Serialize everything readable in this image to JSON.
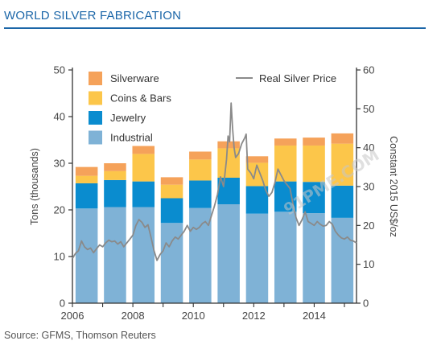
{
  "header": {
    "title": "WORLD SILVER FABRICATION"
  },
  "footer": {
    "source": "Source: GFMS, Thomson Reuters"
  },
  "watermark": "91PME.COM",
  "colors": {
    "industrial": "#7fb2d6",
    "jewelry": "#0a8ccf",
    "coins": "#fcc64a",
    "silverware": "#f5a25a",
    "price": "#8a8a8a",
    "title": "#1b66a8",
    "axis": "#333333"
  },
  "chart_data": {
    "type": "bar",
    "stacked": true,
    "title": "WORLD SILVER FABRICATION",
    "ylabel": "Tons (thousands)",
    "y2label": "Constant 2015 US$/oz",
    "ylim": [
      0,
      50
    ],
    "y2lim": [
      0,
      60
    ],
    "yticks": [
      "0",
      "10",
      "20",
      "30",
      "40",
      "50"
    ],
    "y2ticks": [
      "0",
      "10",
      "20",
      "30",
      "40",
      "50",
      "60"
    ],
    "xticks": [
      "2006",
      "2008",
      "2010",
      "2012",
      "2014"
    ],
    "xlim": [
      2006,
      2015.4
    ],
    "categories": [
      "2006",
      "2007",
      "2008",
      "2009",
      "2010",
      "2011",
      "2012",
      "2013",
      "2014",
      "2015"
    ],
    "series": [
      {
        "name": "Industrial",
        "values": [
          20.3,
          20.6,
          20.6,
          17.2,
          20.4,
          21.2,
          19.2,
          19.6,
          19.3,
          18.3
        ]
      },
      {
        "name": "Jewelry",
        "values": [
          5.4,
          5.8,
          5.5,
          5.3,
          5.9,
          5.7,
          5.9,
          6.5,
          6.7,
          6.9
        ]
      },
      {
        "name": "Coins & Bars",
        "values": [
          1.6,
          1.9,
          5.9,
          2.9,
          4.5,
          6.3,
          5.0,
          7.7,
          7.8,
          9.0
        ]
      },
      {
        "name": "Silverware",
        "values": [
          1.9,
          1.7,
          1.7,
          1.6,
          1.7,
          1.5,
          1.4,
          1.5,
          1.7,
          2.2
        ]
      }
    ],
    "line_series": {
      "name": "Real Silver Price",
      "axis": "right",
      "points": [
        [
          2006.0,
          11.5
        ],
        [
          2006.1,
          12.8
        ],
        [
          2006.2,
          13.5
        ],
        [
          2006.3,
          16.0
        ],
        [
          2006.4,
          14.5
        ],
        [
          2006.5,
          13.8
        ],
        [
          2006.6,
          14.2
        ],
        [
          2006.7,
          13.0
        ],
        [
          2006.8,
          14.0
        ],
        [
          2006.9,
          15.0
        ],
        [
          2007.0,
          14.5
        ],
        [
          2007.1,
          15.5
        ],
        [
          2007.2,
          16.2
        ],
        [
          2007.3,
          15.8
        ],
        [
          2007.4,
          16.0
        ],
        [
          2007.5,
          15.2
        ],
        [
          2007.6,
          15.8
        ],
        [
          2007.7,
          14.5
        ],
        [
          2007.8,
          15.5
        ],
        [
          2007.9,
          16.5
        ],
        [
          2008.0,
          17.5
        ],
        [
          2008.1,
          20.0
        ],
        [
          2008.2,
          21.5
        ],
        [
          2008.3,
          20.8
        ],
        [
          2008.4,
          19.5
        ],
        [
          2008.5,
          20.2
        ],
        [
          2008.6,
          17.0
        ],
        [
          2008.7,
          13.5
        ],
        [
          2008.8,
          11.0
        ],
        [
          2008.9,
          12.5
        ],
        [
          2009.0,
          13.5
        ],
        [
          2009.1,
          15.5
        ],
        [
          2009.2,
          14.5
        ],
        [
          2009.3,
          16.0
        ],
        [
          2009.4,
          17.0
        ],
        [
          2009.5,
          16.5
        ],
        [
          2009.6,
          17.5
        ],
        [
          2009.7,
          18.5
        ],
        [
          2009.8,
          20.0
        ],
        [
          2009.9,
          18.5
        ],
        [
          2010.0,
          19.5
        ],
        [
          2010.1,
          19.0
        ],
        [
          2010.2,
          19.5
        ],
        [
          2010.3,
          20.5
        ],
        [
          2010.4,
          21.0
        ],
        [
          2010.5,
          20.0
        ],
        [
          2010.6,
          22.5
        ],
        [
          2010.7,
          25.0
        ],
        [
          2010.8,
          28.0
        ],
        [
          2010.9,
          32.5
        ],
        [
          2011.0,
          30.0
        ],
        [
          2011.1,
          37.0
        ],
        [
          2011.15,
          43.0
        ],
        [
          2011.2,
          41.5
        ],
        [
          2011.25,
          51.5
        ],
        [
          2011.3,
          45.0
        ],
        [
          2011.35,
          40.0
        ],
        [
          2011.4,
          37.5
        ],
        [
          2011.5,
          38.5
        ],
        [
          2011.6,
          41.0
        ],
        [
          2011.7,
          42.5
        ],
        [
          2011.75,
          43.5
        ],
        [
          2011.8,
          34.5
        ],
        [
          2011.9,
          33.5
        ],
        [
          2012.0,
          32.0
        ],
        [
          2012.1,
          35.5
        ],
        [
          2012.2,
          33.5
        ],
        [
          2012.3,
          31.5
        ],
        [
          2012.4,
          29.0
        ],
        [
          2012.5,
          27.5
        ],
        [
          2012.6,
          28.5
        ],
        [
          2012.7,
          31.0
        ],
        [
          2012.8,
          34.5
        ],
        [
          2012.9,
          33.0
        ],
        [
          2013.0,
          31.5
        ],
        [
          2013.1,
          30.5
        ],
        [
          2013.2,
          29.5
        ],
        [
          2013.3,
          25.5
        ],
        [
          2013.4,
          22.0
        ],
        [
          2013.5,
          20.0
        ],
        [
          2013.6,
          21.5
        ],
        [
          2013.7,
          23.5
        ],
        [
          2013.8,
          21.0
        ],
        [
          2013.9,
          20.5
        ],
        [
          2014.0,
          20.0
        ],
        [
          2014.1,
          21.0
        ],
        [
          2014.2,
          20.3
        ],
        [
          2014.3,
          19.8
        ],
        [
          2014.4,
          20.0
        ],
        [
          2014.5,
          21.0
        ],
        [
          2014.6,
          20.3
        ],
        [
          2014.7,
          18.5
        ],
        [
          2014.8,
          17.5
        ],
        [
          2014.9,
          16.8
        ],
        [
          2015.0,
          16.5
        ],
        [
          2015.1,
          17.0
        ],
        [
          2015.2,
          16.2
        ],
        [
          2015.3,
          16.0
        ],
        [
          2015.4,
          15.5
        ]
      ]
    },
    "legend": {
      "bars": [
        "Silverware",
        "Coins & Bars",
        "Jewelry",
        "Industrial"
      ],
      "line": "Real Silver Price",
      "placement": "top"
    },
    "grid": false
  }
}
